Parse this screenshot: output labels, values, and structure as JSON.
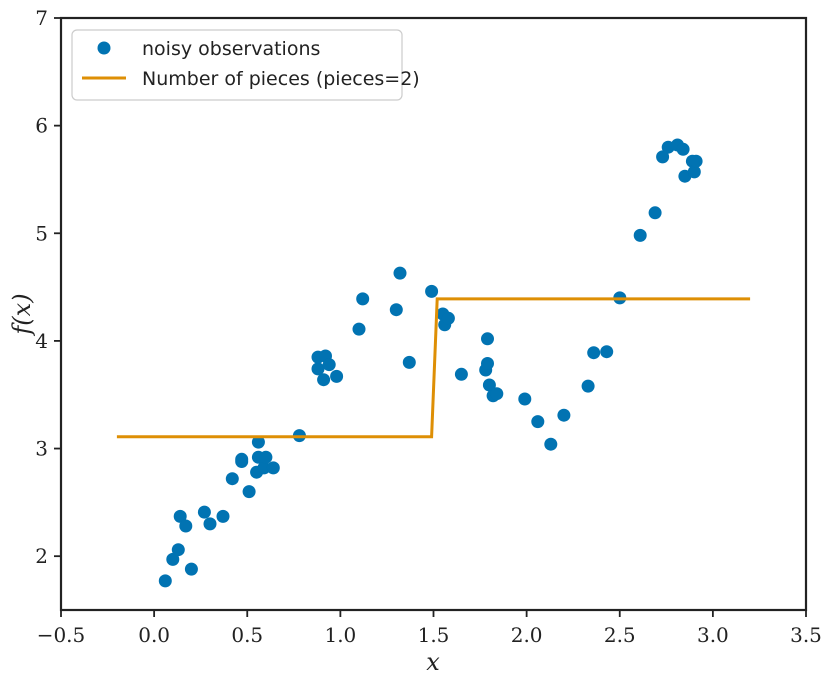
{
  "chart_data": {
    "type": "scatter",
    "xlabel": "x",
    "ylabel": "f(x)",
    "xlim": [
      -0.5,
      3.5
    ],
    "ylim": [
      1.5,
      7
    ],
    "xticks": [
      -0.5,
      0.0,
      0.5,
      1.0,
      1.5,
      2.0,
      2.5,
      3.0,
      3.5
    ],
    "xtick_labels": [
      "−0.5",
      "0.0",
      "0.5",
      "1.0",
      "1.5",
      "2.0",
      "2.5",
      "3.0",
      "3.5"
    ],
    "yticks": [
      2,
      3,
      4,
      5,
      6,
      7
    ],
    "ytick_labels": [
      "2",
      "3",
      "4",
      "5",
      "6",
      "7"
    ],
    "grid": false,
    "legend_position": "top-left",
    "series": [
      {
        "name": "noisy observations",
        "kind": "scatter",
        "color": "#0173b2",
        "points": [
          [
            0.06,
            1.77
          ],
          [
            0.1,
            1.97
          ],
          [
            0.13,
            2.06
          ],
          [
            0.14,
            2.37
          ],
          [
            0.17,
            2.28
          ],
          [
            0.2,
            1.88
          ],
          [
            0.27,
            2.41
          ],
          [
            0.3,
            2.3
          ],
          [
            0.37,
            2.37
          ],
          [
            0.42,
            2.72
          ],
          [
            0.47,
            2.88
          ],
          [
            0.47,
            2.9
          ],
          [
            0.51,
            2.6
          ],
          [
            0.55,
            2.78
          ],
          [
            0.56,
            2.92
          ],
          [
            0.56,
            3.06
          ],
          [
            0.59,
            2.82
          ],
          [
            0.6,
            2.92
          ],
          [
            0.64,
            2.82
          ],
          [
            0.78,
            3.12
          ],
          [
            0.88,
            3.74
          ],
          [
            0.88,
            3.85
          ],
          [
            0.91,
            3.64
          ],
          [
            0.92,
            3.86
          ],
          [
            0.94,
            3.78
          ],
          [
            0.98,
            3.67
          ],
          [
            1.1,
            4.11
          ],
          [
            1.12,
            4.39
          ],
          [
            1.3,
            4.29
          ],
          [
            1.32,
            4.63
          ],
          [
            1.37,
            3.8
          ],
          [
            1.49,
            4.46
          ],
          [
            1.55,
            4.25
          ],
          [
            1.56,
            4.15
          ],
          [
            1.58,
            4.21
          ],
          [
            1.65,
            3.69
          ],
          [
            1.78,
            3.73
          ],
          [
            1.79,
            3.79
          ],
          [
            1.79,
            4.02
          ],
          [
            1.8,
            3.59
          ],
          [
            1.82,
            3.49
          ],
          [
            1.84,
            3.51
          ],
          [
            1.99,
            3.46
          ],
          [
            2.06,
            3.25
          ],
          [
            2.13,
            3.04
          ],
          [
            2.2,
            3.31
          ],
          [
            2.33,
            3.58
          ],
          [
            2.36,
            3.89
          ],
          [
            2.43,
            3.9
          ],
          [
            2.5,
            4.4
          ],
          [
            2.61,
            4.98
          ],
          [
            2.69,
            5.19
          ],
          [
            2.73,
            5.71
          ],
          [
            2.76,
            5.8
          ],
          [
            2.81,
            5.82
          ],
          [
            2.84,
            5.78
          ],
          [
            2.85,
            5.53
          ],
          [
            2.89,
            5.67
          ],
          [
            2.9,
            5.57
          ],
          [
            2.91,
            5.67
          ]
        ]
      },
      {
        "name": "Number of pieces (pieces=2)",
        "kind": "line",
        "color": "#de8f05",
        "points": [
          [
            -0.2,
            3.11
          ],
          [
            1.49,
            3.11
          ],
          [
            1.52,
            4.39
          ],
          [
            3.2,
            4.39
          ]
        ]
      }
    ]
  }
}
